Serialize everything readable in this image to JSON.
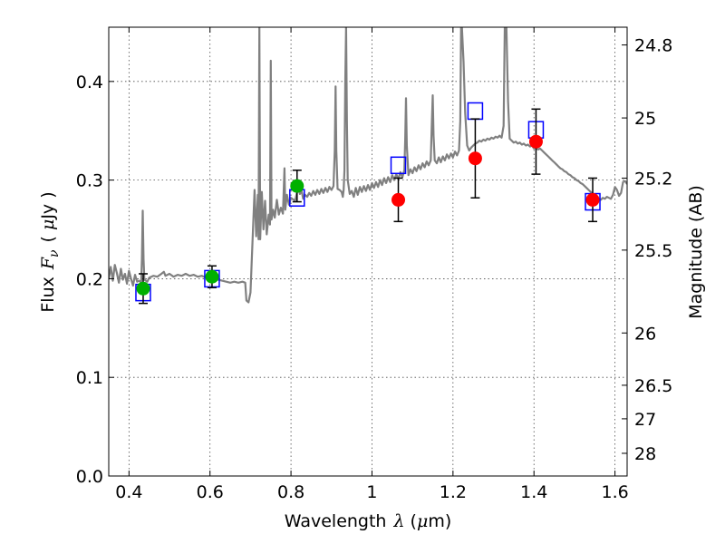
{
  "chart_data": {
    "type": "scatter",
    "title": "",
    "xlabel": {
      "prefix": "Wavelength",
      "symbol": "λ",
      "unit_open": "(",
      "unit_mu": "μ",
      "unit_rest": "m)"
    },
    "ylabel": {
      "prefix": "Flux",
      "symbol": "F",
      "subscript": "ν",
      "unit_open": "(",
      "unit_mu": "μ",
      "unit_rest": "Jy )"
    },
    "y2label": "Magnitude (AB)",
    "xlim": [
      0.35,
      1.63
    ],
    "ylim": [
      0.0,
      0.455
    ],
    "x_ticks": [
      {
        "value": 0.4,
        "label": "0.4"
      },
      {
        "value": 0.6,
        "label": "0.6"
      },
      {
        "value": 0.8,
        "label": "0.8"
      },
      {
        "value": 1.0,
        "label": "1"
      },
      {
        "value": 1.2,
        "label": "1.2"
      },
      {
        "value": 1.4,
        "label": "1.4"
      },
      {
        "value": 1.6,
        "label": "1.6"
      }
    ],
    "y_ticks": [
      {
        "value": 0.0,
        "label": "0.0"
      },
      {
        "value": 0.1,
        "label": "0.1"
      },
      {
        "value": 0.2,
        "label": "0.2"
      },
      {
        "value": 0.3,
        "label": "0.3"
      },
      {
        "value": 0.4,
        "label": "0.4"
      }
    ],
    "y2_ticks": [
      {
        "flux": 0.437,
        "label": "24.8"
      },
      {
        "flux": 0.363,
        "label": "25"
      },
      {
        "flux": 0.302,
        "label": "25.2"
      },
      {
        "flux": 0.229,
        "label": "25.5"
      },
      {
        "flux": 0.145,
        "label": "26"
      },
      {
        "flux": 0.092,
        "label": "26.5"
      },
      {
        "flux": 0.058,
        "label": "27"
      },
      {
        "flux": 0.023,
        "label": "28"
      }
    ],
    "series": [
      {
        "name": "model_spectrum",
        "kind": "line",
        "color": "#808080",
        "points": [
          [
            0.35,
            0.2
          ],
          [
            0.355,
            0.212
          ],
          [
            0.36,
            0.198
          ],
          [
            0.365,
            0.214
          ],
          [
            0.37,
            0.206
          ],
          [
            0.375,
            0.196
          ],
          [
            0.38,
            0.21
          ],
          [
            0.385,
            0.199
          ],
          [
            0.39,
            0.205
          ],
          [
            0.395,
            0.195
          ],
          [
            0.4,
            0.208
          ],
          [
            0.405,
            0.2
          ],
          [
            0.41,
            0.193
          ],
          [
            0.415,
            0.204
          ],
          [
            0.42,
            0.197
          ],
          [
            0.425,
            0.198
          ],
          [
            0.43,
            0.196
          ],
          [
            0.432,
            0.22
          ],
          [
            0.434,
            0.269
          ],
          [
            0.436,
            0.22
          ],
          [
            0.438,
            0.199
          ],
          [
            0.445,
            0.197
          ],
          [
            0.45,
            0.201
          ],
          [
            0.46,
            0.203
          ],
          [
            0.47,
            0.202
          ],
          [
            0.48,
            0.205
          ],
          [
            0.486,
            0.207
          ],
          [
            0.49,
            0.203
          ],
          [
            0.5,
            0.205
          ],
          [
            0.51,
            0.202
          ],
          [
            0.52,
            0.204
          ],
          [
            0.53,
            0.203
          ],
          [
            0.54,
            0.205
          ],
          [
            0.55,
            0.203
          ],
          [
            0.56,
            0.204
          ],
          [
            0.57,
            0.202
          ],
          [
            0.58,
            0.203
          ],
          [
            0.59,
            0.201
          ],
          [
            0.6,
            0.202
          ],
          [
            0.61,
            0.2
          ],
          [
            0.62,
            0.199
          ],
          [
            0.63,
            0.198
          ],
          [
            0.64,
            0.197
          ],
          [
            0.65,
            0.196
          ],
          [
            0.66,
            0.197
          ],
          [
            0.67,
            0.196
          ],
          [
            0.68,
            0.197
          ],
          [
            0.687,
            0.196
          ],
          [
            0.69,
            0.178
          ],
          [
            0.695,
            0.176
          ],
          [
            0.7,
            0.186
          ],
          [
            0.705,
            0.237
          ],
          [
            0.71,
            0.29
          ],
          [
            0.714,
            0.243
          ],
          [
            0.718,
            0.285
          ],
          [
            0.72,
            0.24
          ],
          [
            0.722,
            0.455
          ],
          [
            0.724,
            0.24
          ],
          [
            0.728,
            0.288
          ],
          [
            0.732,
            0.25
          ],
          [
            0.736,
            0.279
          ],
          [
            0.74,
            0.245
          ],
          [
            0.745,
            0.265
          ],
          [
            0.748,
            0.255
          ],
          [
            0.75,
            0.421
          ],
          [
            0.752,
            0.26
          ],
          [
            0.756,
            0.27
          ],
          [
            0.76,
            0.262
          ],
          [
            0.765,
            0.28
          ],
          [
            0.77,
            0.265
          ],
          [
            0.775,
            0.272
          ],
          [
            0.78,
            0.266
          ],
          [
            0.784,
            0.312
          ],
          [
            0.786,
            0.27
          ],
          [
            0.79,
            0.285
          ],
          [
            0.795,
            0.275
          ],
          [
            0.8,
            0.282
          ],
          [
            0.81,
            0.279
          ],
          [
            0.815,
            0.288
          ],
          [
            0.818,
            0.296
          ],
          [
            0.822,
            0.286
          ],
          [
            0.826,
            0.29
          ],
          [
            0.83,
            0.281
          ],
          [
            0.835,
            0.285
          ],
          [
            0.84,
            0.283
          ],
          [
            0.845,
            0.287
          ],
          [
            0.85,
            0.284
          ],
          [
            0.855,
            0.289
          ],
          [
            0.86,
            0.285
          ],
          [
            0.865,
            0.29
          ],
          [
            0.87,
            0.286
          ],
          [
            0.875,
            0.291
          ],
          [
            0.88,
            0.287
          ],
          [
            0.885,
            0.292
          ],
          [
            0.89,
            0.288
          ],
          [
            0.895,
            0.293
          ],
          [
            0.9,
            0.29
          ],
          [
            0.905,
            0.294
          ],
          [
            0.908,
            0.33
          ],
          [
            0.91,
            0.395
          ],
          [
            0.912,
            0.33
          ],
          [
            0.915,
            0.291
          ],
          [
            0.92,
            0.29
          ],
          [
            0.925,
            0.288
          ],
          [
            0.928,
            0.283
          ],
          [
            0.93,
            0.29
          ],
          [
            0.932,
            0.31
          ],
          [
            0.934,
            0.4
          ],
          [
            0.936,
            0.455
          ],
          [
            0.938,
            0.36
          ],
          [
            0.94,
            0.3
          ],
          [
            0.945,
            0.286
          ],
          [
            0.95,
            0.289
          ],
          [
            0.955,
            0.283
          ],
          [
            0.96,
            0.292
          ],
          [
            0.965,
            0.285
          ],
          [
            0.97,
            0.293
          ],
          [
            0.975,
            0.288
          ],
          [
            0.98,
            0.294
          ],
          [
            0.985,
            0.289
          ],
          [
            0.99,
            0.295
          ],
          [
            0.995,
            0.29
          ],
          [
            1.0,
            0.297
          ],
          [
            1.005,
            0.292
          ],
          [
            1.01,
            0.298
          ],
          [
            1.015,
            0.293
          ],
          [
            1.02,
            0.3
          ],
          [
            1.025,
            0.295
          ],
          [
            1.03,
            0.302
          ],
          [
            1.035,
            0.297
          ],
          [
            1.04,
            0.303
          ],
          [
            1.045,
            0.298
          ],
          [
            1.05,
            0.305
          ],
          [
            1.055,
            0.3
          ],
          [
            1.06,
            0.306
          ],
          [
            1.065,
            0.301
          ],
          [
            1.07,
            0.308
          ],
          [
            1.075,
            0.303
          ],
          [
            1.08,
            0.31
          ],
          [
            1.082,
            0.34
          ],
          [
            1.084,
            0.383
          ],
          [
            1.086,
            0.335
          ],
          [
            1.09,
            0.305
          ],
          [
            1.095,
            0.311
          ],
          [
            1.1,
            0.307
          ],
          [
            1.105,
            0.313
          ],
          [
            1.11,
            0.309
          ],
          [
            1.115,
            0.315
          ],
          [
            1.12,
            0.311
          ],
          [
            1.125,
            0.317
          ],
          [
            1.13,
            0.313
          ],
          [
            1.135,
            0.319
          ],
          [
            1.14,
            0.315
          ],
          [
            1.145,
            0.32
          ],
          [
            1.148,
            0.36
          ],
          [
            1.15,
            0.386
          ],
          [
            1.152,
            0.345
          ],
          [
            1.155,
            0.32
          ],
          [
            1.16,
            0.317
          ],
          [
            1.165,
            0.323
          ],
          [
            1.17,
            0.318
          ],
          [
            1.175,
            0.324
          ],
          [
            1.18,
            0.32
          ],
          [
            1.185,
            0.326
          ],
          [
            1.19,
            0.322
          ],
          [
            1.195,
            0.327
          ],
          [
            1.2,
            0.323
          ],
          [
            1.205,
            0.329
          ],
          [
            1.21,
            0.325
          ],
          [
            1.215,
            0.33
          ],
          [
            1.218,
            0.36
          ],
          [
            1.22,
            0.455
          ],
          [
            1.222,
            0.455
          ],
          [
            1.226,
            0.42
          ],
          [
            1.23,
            0.368
          ],
          [
            1.235,
            0.335
          ],
          [
            1.24,
            0.33
          ],
          [
            1.245,
            0.333
          ],
          [
            1.25,
            0.335
          ],
          [
            1.255,
            0.337
          ],
          [
            1.26,
            0.338
          ],
          [
            1.265,
            0.34
          ],
          [
            1.27,
            0.339
          ],
          [
            1.275,
            0.341
          ],
          [
            1.28,
            0.34
          ],
          [
            1.285,
            0.342
          ],
          [
            1.29,
            0.341
          ],
          [
            1.295,
            0.343
          ],
          [
            1.3,
            0.342
          ],
          [
            1.305,
            0.344
          ],
          [
            1.31,
            0.343
          ],
          [
            1.315,
            0.345
          ],
          [
            1.32,
            0.343
          ],
          [
            1.325,
            0.355
          ],
          [
            1.328,
            0.455
          ],
          [
            1.332,
            0.455
          ],
          [
            1.336,
            0.38
          ],
          [
            1.34,
            0.342
          ],
          [
            1.345,
            0.34
          ],
          [
            1.35,
            0.338
          ],
          [
            1.355,
            0.339
          ],
          [
            1.36,
            0.337
          ],
          [
            1.365,
            0.338
          ],
          [
            1.37,
            0.336
          ],
          [
            1.375,
            0.337
          ],
          [
            1.38,
            0.335
          ],
          [
            1.385,
            0.336
          ],
          [
            1.39,
            0.334
          ],
          [
            1.395,
            0.335
          ],
          [
            1.4,
            0.332
          ],
          [
            1.405,
            0.333
          ],
          [
            1.41,
            0.331
          ],
          [
            1.415,
            0.332
          ],
          [
            1.42,
            0.33
          ],
          [
            1.425,
            0.328
          ],
          [
            1.43,
            0.326
          ],
          [
            1.435,
            0.324
          ],
          [
            1.44,
            0.322
          ],
          [
            1.445,
            0.32
          ],
          [
            1.45,
            0.318
          ],
          [
            1.455,
            0.316
          ],
          [
            1.46,
            0.314
          ],
          [
            1.465,
            0.312
          ],
          [
            1.47,
            0.311
          ],
          [
            1.475,
            0.309
          ],
          [
            1.48,
            0.308
          ],
          [
            1.485,
            0.306
          ],
          [
            1.49,
            0.305
          ],
          [
            1.495,
            0.303
          ],
          [
            1.5,
            0.302
          ],
          [
            1.505,
            0.3
          ],
          [
            1.51,
            0.299
          ],
          [
            1.515,
            0.297
          ],
          [
            1.52,
            0.296
          ],
          [
            1.525,
            0.294
          ],
          [
            1.53,
            0.292
          ],
          [
            1.535,
            0.29
          ],
          [
            1.54,
            0.288
          ],
          [
            1.545,
            0.286
          ],
          [
            1.55,
            0.284
          ],
          [
            1.555,
            0.283
          ],
          [
            1.56,
            0.281
          ],
          [
            1.565,
            0.28
          ],
          [
            1.57,
            0.282
          ],
          [
            1.575,
            0.281
          ],
          [
            1.58,
            0.283
          ],
          [
            1.585,
            0.282
          ],
          [
            1.59,
            0.281
          ],
          [
            1.595,
            0.285
          ],
          [
            1.6,
            0.293
          ],
          [
            1.605,
            0.29
          ],
          [
            1.61,
            0.284
          ],
          [
            1.615,
            0.287
          ],
          [
            1.62,
            0.298
          ],
          [
            1.625,
            0.299
          ],
          [
            1.63,
            0.296
          ]
        ]
      },
      {
        "name": "model_photometry",
        "kind": "open-square",
        "color": "#0000ff",
        "points": [
          [
            0.435,
            0.186
          ],
          [
            0.605,
            0.2
          ],
          [
            0.815,
            0.282
          ],
          [
            1.065,
            0.315
          ],
          [
            1.255,
            0.37
          ],
          [
            1.405,
            0.351
          ],
          [
            1.545,
            0.278
          ]
        ]
      },
      {
        "name": "observed_optical",
        "kind": "filled-circle",
        "color": "#00b000",
        "points": [
          {
            "x": 0.435,
            "y": 0.19,
            "err": 0.015
          },
          {
            "x": 0.605,
            "y": 0.202,
            "err": 0.011
          },
          {
            "x": 0.815,
            "y": 0.294,
            "err": 0.016
          }
        ]
      },
      {
        "name": "observed_nir",
        "kind": "filled-circle",
        "color": "#ff0000",
        "points": [
          {
            "x": 1.065,
            "y": 0.28,
            "err": 0.022
          },
          {
            "x": 1.255,
            "y": 0.322,
            "err": 0.04
          },
          {
            "x": 1.405,
            "y": 0.339,
            "err": 0.033
          },
          {
            "x": 1.545,
            "y": 0.28,
            "err": 0.022
          }
        ]
      }
    ]
  }
}
